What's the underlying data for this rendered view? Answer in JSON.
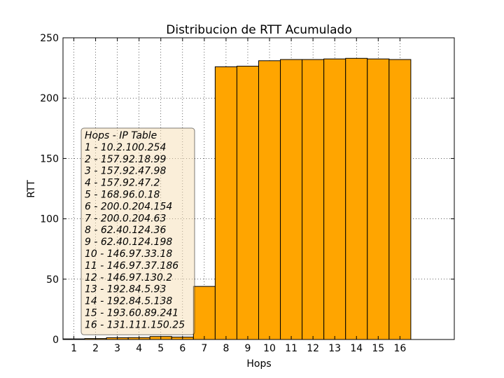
{
  "chart_data": {
    "type": "bar",
    "title": "Distribucion de RTT Acumulado",
    "xlabel": "Hops",
    "ylabel": "RTT",
    "categories": [
      "1",
      "2",
      "3",
      "4",
      "5",
      "6",
      "7",
      "8",
      "9",
      "10",
      "11",
      "12",
      "13",
      "14",
      "15",
      "16"
    ],
    "values": [
      0.5,
      0.8,
      1.5,
      1.6,
      2.5,
      2.0,
      44,
      226,
      226.5,
      231,
      232,
      232,
      232.5,
      233,
      232.5,
      232
    ],
    "ylim": [
      0,
      250
    ],
    "yticks": [
      "0",
      "50",
      "100",
      "150",
      "200",
      "250"
    ],
    "grid": true,
    "bar_color": "#ffa500",
    "legend": {
      "placement": "lower-left",
      "title": "Hops - IP Table",
      "entries": [
        "1 - 10.2.100.254",
        "2 - 157.92.18.99",
        "3 - 157.92.47.98",
        "4 - 157.92.47.2",
        "5 - 168.96.0.18",
        "6 - 200.0.204.154",
        "7 - 200.0.204.63",
        "8 - 62.40.124.36",
        "9 - 62.40.124.198",
        "10 - 146.97.33.18",
        "11 - 146.97.37.186",
        "12 - 146.97.130.2",
        "13 - 192.84.5.93",
        "14 - 192.84.5.138",
        "15 - 193.60.89.241",
        "16 - 131.111.150.25"
      ]
    }
  }
}
